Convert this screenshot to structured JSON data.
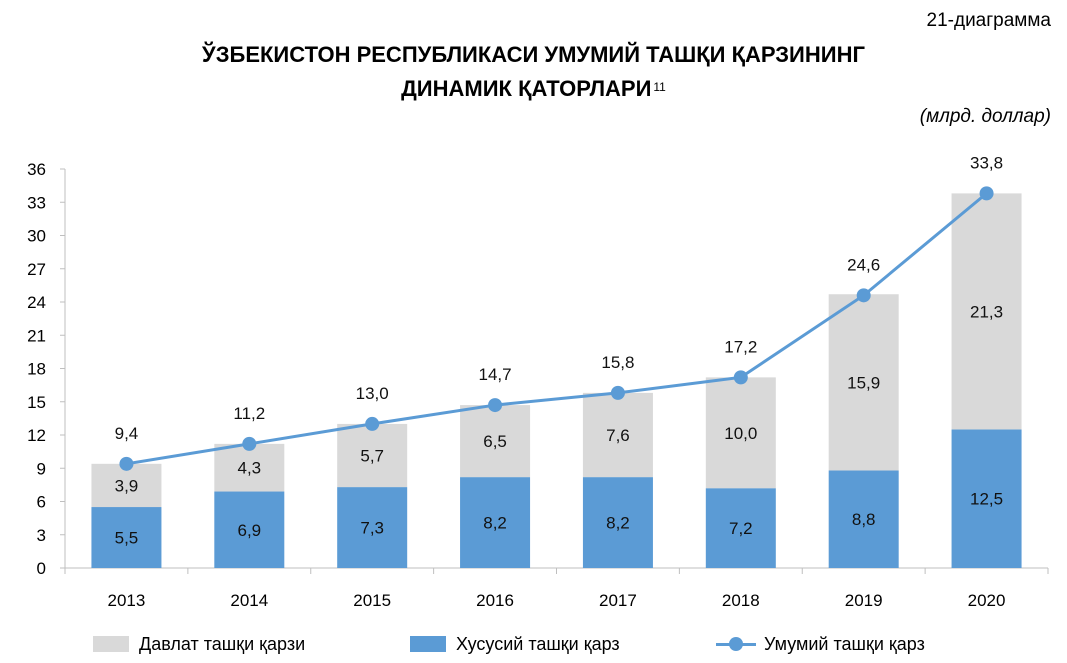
{
  "header": {
    "diagram_number": "21-диаграмма",
    "title_line_1": "ЎЗБЕКИСТОН РЕСПУБЛИКАСИ УМУМИЙ ТАШҚИ ҚАРЗИНИНГ",
    "title_line_2": "ДИНАМИК ҚАТОРЛАРИ",
    "footnote_ref": "11",
    "unit": "(млрд. доллар)"
  },
  "colors": {
    "state_debt": "#d9d9d9",
    "private_debt": "#5b9bd5",
    "total_line": "#5b9bd5",
    "axis": "#bfbfbf"
  },
  "chart_data": {
    "type": "bar",
    "stacked": true,
    "categories": [
      "2013",
      "2014",
      "2015",
      "2016",
      "2017",
      "2018",
      "2019",
      "2020"
    ],
    "series": [
      {
        "name": "Хусусий ташқи қарз",
        "type": "bar",
        "values": [
          5.5,
          6.9,
          7.3,
          8.2,
          8.2,
          7.2,
          8.8,
          12.5
        ],
        "labels": [
          "5,5",
          "6,9",
          "7,3",
          "8,2",
          "8,2",
          "7,2",
          "8,8",
          "12,5"
        ]
      },
      {
        "name": "Давлат ташқи қарзи",
        "type": "bar",
        "values": [
          3.9,
          4.3,
          5.7,
          6.5,
          7.6,
          10.0,
          15.9,
          21.3
        ],
        "labels": [
          "3,9",
          "4,3",
          "5,7",
          "6,5",
          "7,6",
          "10,0",
          "15,9",
          "21,3"
        ]
      },
      {
        "name": "Умумий ташқи қарз",
        "type": "line",
        "values": [
          9.4,
          11.2,
          13.0,
          14.7,
          15.8,
          17.2,
          24.6,
          33.8
        ],
        "labels": [
          "9,4",
          "11,2",
          "13,0",
          "14,7",
          "15,8",
          "17,2",
          "24,6",
          "33,8"
        ]
      }
    ],
    "ylim": [
      0,
      36
    ],
    "yticks": [
      0,
      3,
      6,
      9,
      12,
      15,
      18,
      21,
      24,
      27,
      30,
      33,
      36
    ],
    "ytick_labels": [
      "0",
      "3",
      "6",
      "9",
      "12",
      "15",
      "18",
      "21",
      "24",
      "27",
      "30",
      "33",
      "36"
    ],
    "grid": false,
    "legend_position": "bottom"
  },
  "legend": {
    "state_debt": "Давлат ташқи қарзи",
    "private_debt": "Хусусий ташқи қарз",
    "total": "Умумий ташқи қарз"
  }
}
